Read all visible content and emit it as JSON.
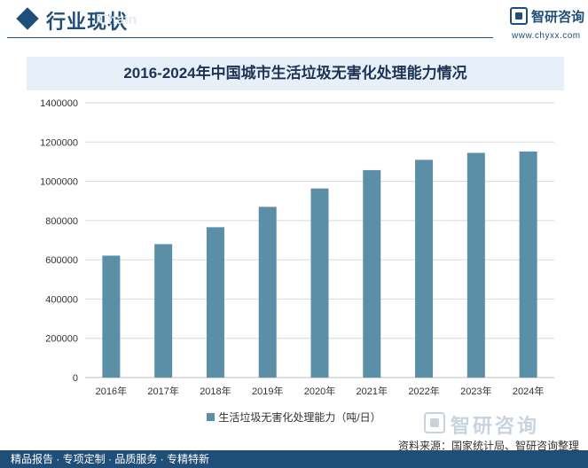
{
  "header": {
    "section_title": "行业现状",
    "watermark_text": "Chain"
  },
  "brand": {
    "name": "智研咨询",
    "url": "www.chyxx.com"
  },
  "colors": {
    "primary": "#1f4e79",
    "bar": "#5b8fa8",
    "title_band": "#e7f0f9",
    "grid": "#d9d9d9"
  },
  "chart_data": {
    "type": "bar",
    "title": "2016-2024年中国城市生活垃圾无害化处理能力情况",
    "categories": [
      "2016年",
      "2017年",
      "2018年",
      "2019年",
      "2020年",
      "2021年",
      "2022年",
      "2023年",
      "2024年"
    ],
    "series": [
      {
        "name": "生活垃圾无害化处理能力（吨/日）",
        "values": [
          621351,
          679889,
          766195,
          869875,
          963460,
          1057064,
          1109435,
          1145000,
          1152000
        ]
      }
    ],
    "ylim": [
      0,
      1400000
    ],
    "yticks": [
      "0",
      "200000",
      "400000",
      "600000",
      "800000",
      "1000000",
      "1200000",
      "1400000"
    ],
    "xlabel": "",
    "ylabel": "",
    "grid": true,
    "legend_position": "bottom"
  },
  "footer": {
    "logo_text": "智研咨询",
    "source": "资料来源：国家统计局、智研咨询整理",
    "tags": "精品报告 · 专项定制 · 品质服务 · 专精特新"
  }
}
